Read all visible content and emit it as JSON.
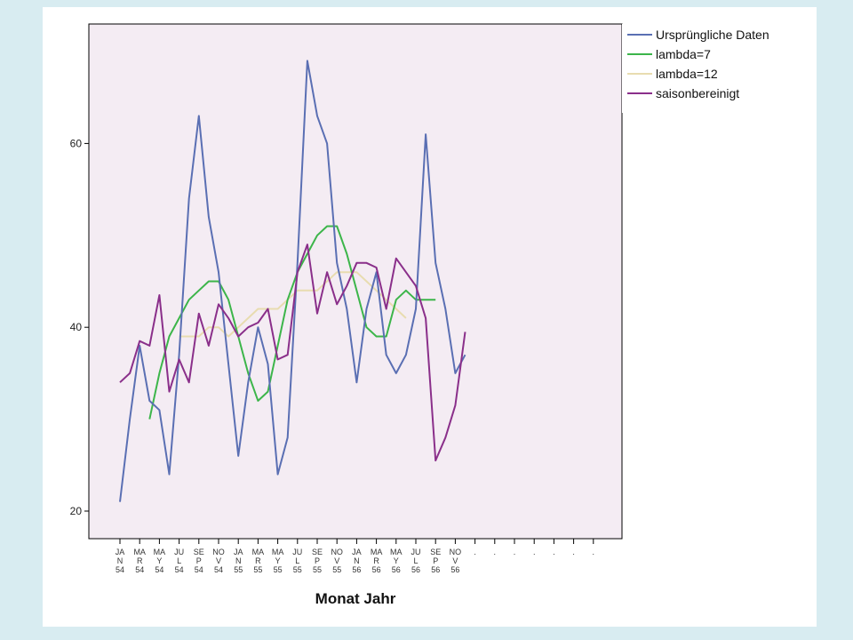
{
  "chart_data": {
    "type": "line",
    "title": "",
    "xlabel": "Monat Jahr",
    "ylabel": "",
    "ylim": [
      17,
      73
    ],
    "yticks": [
      20,
      40,
      60
    ],
    "grid": false,
    "legend_position": "right",
    "x_tick_labels": [
      [
        "JA",
        "N",
        "54"
      ],
      [
        "MA",
        "R",
        "54"
      ],
      [
        "MA",
        "Y",
        "54"
      ],
      [
        "JU",
        "L",
        "54"
      ],
      [
        "SE",
        "P",
        "54"
      ],
      [
        "NO",
        "V",
        "54"
      ],
      [
        "JA",
        "N",
        "55"
      ],
      [
        "MA",
        "R",
        "55"
      ],
      [
        "MA",
        "Y",
        "55"
      ],
      [
        "JU",
        "L",
        "55"
      ],
      [
        "SE",
        "P",
        "55"
      ],
      [
        "NO",
        "V",
        "55"
      ],
      [
        "JA",
        "N",
        "56"
      ],
      [
        "MA",
        "R",
        "56"
      ],
      [
        "MA",
        "Y",
        "56"
      ],
      [
        "JU",
        "L",
        "56"
      ],
      [
        "SE",
        "P",
        "56"
      ],
      [
        "NO",
        "V",
        "56"
      ],
      [
        "."
      ],
      [
        "."
      ],
      [
        "."
      ],
      [
        "."
      ],
      [
        "."
      ],
      [
        "."
      ],
      [
        "."
      ]
    ],
    "x_count": 50,
    "series": [
      {
        "name": "Ursprüngliche Daten",
        "color": "#5a6fb3",
        "values": [
          21,
          30,
          38,
          32,
          31,
          24,
          37,
          54,
          63,
          52,
          46,
          36,
          26,
          34,
          40,
          36,
          24,
          28,
          47,
          69,
          63,
          60,
          47,
          42,
          34,
          42,
          46,
          37,
          35,
          37,
          42,
          61,
          47,
          42,
          35,
          37
        ]
      },
      {
        "name": "lambda=7",
        "color": "#3cb54a",
        "values": [
          null,
          null,
          null,
          30,
          35,
          39,
          41,
          43,
          44,
          45,
          45,
          43,
          39,
          35,
          32,
          33,
          38,
          43,
          46,
          48,
          50,
          51,
          51,
          48,
          44,
          40,
          39,
          39,
          43,
          44,
          43,
          43,
          43,
          null,
          null,
          null
        ]
      },
      {
        "name": "lambda=12",
        "color": "#e8dcb0",
        "values": [
          null,
          null,
          null,
          null,
          null,
          null,
          39,
          39,
          39,
          40,
          40,
          39,
          40,
          41,
          42,
          42,
          42,
          43,
          44,
          44,
          44,
          45,
          46,
          46,
          46,
          45,
          44,
          43,
          42,
          41,
          null,
          null,
          null,
          null,
          null,
          null
        ]
      },
      {
        "name": "saisonbereinigt",
        "color": "#8a2f8a",
        "values": [
          34,
          35,
          38.5,
          38,
          43.5,
          33,
          36.5,
          34,
          41.5,
          38,
          42.5,
          41,
          39,
          40,
          40.5,
          42,
          36.5,
          37,
          46,
          49,
          41.5,
          46,
          42.5,
          44.5,
          47,
          47,
          46.5,
          42,
          47.5,
          46,
          44.5,
          41,
          25.5,
          28,
          31.5,
          39.5
        ]
      }
    ]
  }
}
